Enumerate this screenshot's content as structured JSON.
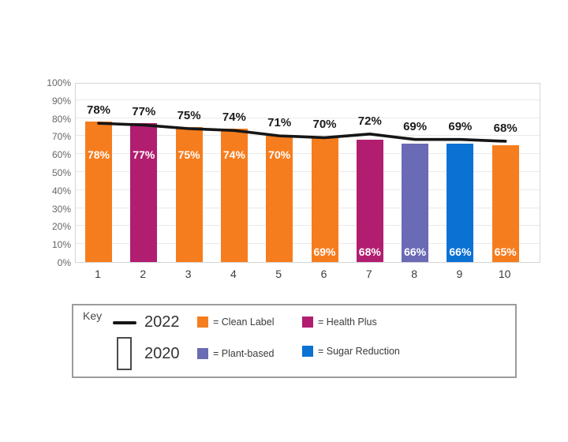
{
  "page": {
    "background": "#ffffff"
  },
  "chart_data": {
    "type": "bar",
    "title": "",
    "xlabel": "",
    "ylabel": "",
    "ylim": [
      0,
      100
    ],
    "grid": true,
    "ytick_labels": [
      "100%",
      "90%",
      "80%",
      "70%",
      "60%",
      "50%",
      "40%",
      "30%",
      "20%",
      "10%",
      "0%"
    ],
    "categories": [
      "1",
      "2",
      "3",
      "4",
      "5",
      "6",
      "7",
      "8",
      "9",
      "10"
    ],
    "bars": [
      {
        "category": "1",
        "value_pct": 78,
        "label": "78%",
        "brand": "Clean Label",
        "color": "#F67D1E",
        "label_position": "middle"
      },
      {
        "category": "2",
        "value_pct": 77,
        "label": "77%",
        "brand": "Health Plus",
        "color": "#B11E70",
        "label_position": "middle"
      },
      {
        "category": "3",
        "value_pct": 75,
        "label": "75%",
        "brand": "Clean Label",
        "color": "#F67D1E",
        "label_position": "middle"
      },
      {
        "category": "4",
        "value_pct": 74,
        "label": "74%",
        "brand": "Clean Label",
        "color": "#F67D1E",
        "label_position": "middle"
      },
      {
        "category": "5",
        "value_pct": 70,
        "label": "70%",
        "brand": "Clean Label",
        "color": "#F67D1E",
        "label_position": "middle"
      },
      {
        "category": "6",
        "value_pct": 69,
        "label": "69%",
        "brand": "Clean Label",
        "color": "#F67D1E",
        "label_position": "bottom"
      },
      {
        "category": "7",
        "value_pct": 68,
        "label": "68%",
        "brand": "Health Plus",
        "color": "#B11E70",
        "label_position": "bottom"
      },
      {
        "category": "8",
        "value_pct": 66,
        "label": "66%",
        "brand": "Plant-based",
        "color": "#6B6AB5",
        "label_position": "bottom"
      },
      {
        "category": "9",
        "value_pct": 66,
        "label": "66%",
        "brand": "Sugar Reduction",
        "color": "#0B72D4",
        "label_position": "bottom"
      },
      {
        "category": "10",
        "value_pct": 65,
        "label": "65%",
        "brand": "Clean Label",
        "color": "#F67D1E",
        "label_position": "bottom"
      }
    ],
    "line_series": {
      "name": "2022",
      "color": "#161616",
      "values_pct": [
        78,
        77,
        75,
        74,
        71,
        70,
        72,
        69,
        69,
        68
      ],
      "labels": [
        "78%",
        "77%",
        "75%",
        "74%",
        "71%",
        "70%",
        "72%",
        "69%",
        "69%",
        "68%"
      ]
    },
    "legend_position": "bottom"
  },
  "key": {
    "title": "Key",
    "line_entry": {
      "label": "2022"
    },
    "bar_entry": {
      "label": "2020"
    },
    "brands": [
      {
        "label": "= Clean Label",
        "color": "#F67D1E"
      },
      {
        "label": "= Health Plus",
        "color": "#B11E70"
      },
      {
        "label": "= Plant-based",
        "color": "#6B6AB5"
      },
      {
        "label": "= Sugar Reduction",
        "color": "#0B72D4"
      }
    ]
  }
}
